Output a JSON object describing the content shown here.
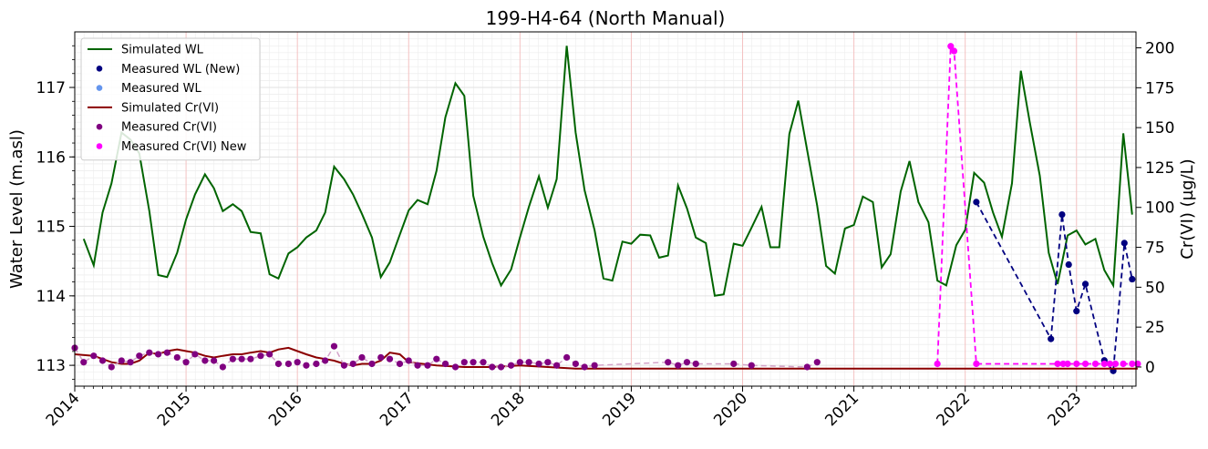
{
  "chart_data": {
    "type": "line",
    "title": "199-H4-64 (North Manual)",
    "ylabel_left": "Water Level (m.asl)",
    "ylabel_right": "Cr(VI) (µg/L)",
    "xlim": [
      "2014-01-01",
      "2023-07-15"
    ],
    "ylim_left": [
      112.7,
      117.8
    ],
    "ylim_right": [
      -12,
      210
    ],
    "x_ticks": [
      "2014",
      "2015",
      "2016",
      "2017",
      "2018",
      "2019",
      "2020",
      "2021",
      "2022",
      "2023"
    ],
    "y_ticks_left": [
      "113",
      "114",
      "115",
      "116",
      "117"
    ],
    "y_ticks_right": [
      "0",
      "25",
      "50",
      "75",
      "100",
      "125",
      "150",
      "175",
      "200"
    ],
    "grid": true,
    "legend_position": "top-left",
    "legend": [
      {
        "label": "Simulated WL",
        "kind": "line",
        "color": "#006400"
      },
      {
        "label": "Measured WL (New)",
        "kind": "dot",
        "color": "#000080"
      },
      {
        "label": "Measured WL",
        "kind": "dot",
        "color": "#6495ED"
      },
      {
        "label": "Simulated Cr(VI)",
        "kind": "line",
        "color": "#8B0000"
      },
      {
        "label": "Measured Cr(VI)",
        "kind": "dot",
        "color": "#800080"
      },
      {
        "label": "Measured Cr(VI) New",
        "kind": "dot",
        "color": "#FF00FF"
      }
    ],
    "series": [
      {
        "name": "Simulated WL",
        "axis": "left",
        "style": "line",
        "color": "#006400",
        "x": [
          2014.08,
          2014.17,
          2014.25,
          2014.33,
          2014.42,
          2014.5,
          2014.58,
          2014.67,
          2014.75,
          2014.83,
          2014.92,
          2015.0,
          2015.08,
          2015.17,
          2015.25,
          2015.33,
          2015.42,
          2015.5,
          2015.58,
          2015.67,
          2015.75,
          2015.83,
          2015.92,
          2016.0,
          2016.08,
          2016.17,
          2016.25,
          2016.33,
          2016.42,
          2016.5,
          2016.58,
          2016.67,
          2016.75,
          2016.83,
          2016.92,
          2017.0,
          2017.08,
          2017.17,
          2017.25,
          2017.33,
          2017.42,
          2017.5,
          2017.58,
          2017.67,
          2017.75,
          2017.83,
          2017.92,
          2018.0,
          2018.08,
          2018.17,
          2018.25,
          2018.33,
          2018.42,
          2018.5,
          2018.58,
          2018.67,
          2018.75,
          2018.83,
          2018.92,
          2019.0,
          2019.08,
          2019.17,
          2019.25,
          2019.33,
          2019.42,
          2019.5,
          2019.58,
          2019.67,
          2019.75,
          2019.83,
          2019.92,
          2020.0,
          2020.08,
          2020.17,
          2020.25,
          2020.33,
          2020.42,
          2020.5,
          2020.58,
          2020.67,
          2020.75,
          2020.83,
          2020.92,
          2021.0,
          2021.08,
          2021.17,
          2021.25,
          2021.33,
          2021.42,
          2021.5,
          2021.58,
          2021.67,
          2021.75,
          2021.83,
          2021.92,
          2022.0,
          2022.08,
          2022.17,
          2022.25,
          2022.33,
          2022.42,
          2022.5,
          2022.58,
          2022.67,
          2022.75,
          2022.83,
          2022.92,
          2023.0,
          2023.08,
          2023.17,
          2023.25,
          2023.33,
          2023.42,
          2023.5
        ],
        "y": [
          114.82,
          114.44,
          115.2,
          115.62,
          116.35,
          116.25,
          116.05,
          115.22,
          114.3,
          114.27,
          114.62,
          115.1,
          115.46,
          115.75,
          115.55,
          115.22,
          115.32,
          115.22,
          114.92,
          114.9,
          114.31,
          114.25,
          114.61,
          114.7,
          114.84,
          114.94,
          115.2,
          115.86,
          115.68,
          115.46,
          115.18,
          114.84,
          114.27,
          114.48,
          114.88,
          115.23,
          115.38,
          115.32,
          115.8,
          116.57,
          117.06,
          116.88,
          115.44,
          114.85,
          114.47,
          114.15,
          114.38,
          114.84,
          115.28,
          115.72,
          115.27,
          115.68,
          117.6,
          116.35,
          115.52,
          114.95,
          114.25,
          114.22,
          114.78,
          114.75,
          114.88,
          114.87,
          114.55,
          114.58,
          115.59,
          115.26,
          114.84,
          114.76,
          114.0,
          114.02,
          114.75,
          114.72,
          114.98,
          115.28,
          114.7,
          114.7,
          116.33,
          116.81,
          116.1,
          115.3,
          114.43,
          114.32,
          114.97,
          115.02,
          115.43,
          115.35,
          114.41,
          114.6,
          115.5,
          115.94,
          115.35,
          115.06,
          114.22,
          114.15,
          114.73,
          114.95,
          115.77,
          115.63,
          115.2,
          114.85,
          115.62,
          117.24,
          116.5,
          115.73,
          114.62,
          114.17,
          114.87,
          114.94,
          114.74,
          114.82,
          114.37,
          114.15,
          116.34,
          115.17
        ]
      },
      {
        "name": "Measured WL (New)",
        "axis": "left",
        "style": "dots-dashed",
        "color": "#000080",
        "x": [
          2022.1,
          2022.77,
          2022.87,
          2022.93,
          2023.0,
          2023.08,
          2023.25,
          2023.33,
          2023.43,
          2023.5
        ],
        "y": [
          115.35,
          113.38,
          115.17,
          114.45,
          113.78,
          114.17,
          113.07,
          112.92,
          114.76,
          114.24
        ]
      },
      {
        "name": "Measured WL",
        "axis": "left",
        "style": "dots-dashed",
        "color": "#6495ED",
        "x": [],
        "y": []
      },
      {
        "name": "Simulated Cr(VI)",
        "axis": "right",
        "style": "line",
        "color": "#8B0000",
        "x": [
          2014.0,
          2014.17,
          2014.33,
          2014.42,
          2014.5,
          2014.58,
          2014.67,
          2014.75,
          2014.83,
          2014.92,
          2015.0,
          2015.08,
          2015.17,
          2015.25,
          2015.33,
          2015.42,
          2015.5,
          2015.58,
          2015.67,
          2015.75,
          2015.83,
          2015.92,
          2016.0,
          2016.08,
          2016.17,
          2016.25,
          2016.33,
          2016.42,
          2016.5,
          2016.58,
          2016.67,
          2016.75,
          2016.83,
          2016.92,
          2017.0,
          2017.25,
          2017.5,
          2017.75,
          2018.0,
          2018.25,
          2018.5,
          2019.0,
          2020.0,
          2021.0,
          2022.0,
          2023.0,
          2023.55
        ],
        "y": [
          8,
          7,
          3,
          2,
          2,
          4,
          9,
          8,
          10,
          11,
          10,
          9,
          7,
          6,
          7,
          8,
          8,
          9,
          10,
          9,
          11,
          12,
          10,
          8,
          6,
          5,
          4,
          2,
          1,
          2,
          2,
          4,
          9,
          8,
          3,
          1,
          0,
          0,
          1,
          0,
          -1,
          -1,
          -1,
          -1,
          -1,
          -1,
          -1
        ]
      },
      {
        "name": "Measured Cr(VI)",
        "axis": "right",
        "style": "dots-dashed",
        "color": "#800080",
        "x": [
          2014.0,
          2014.08,
          2014.17,
          2014.25,
          2014.33,
          2014.42,
          2014.5,
          2014.58,
          2014.67,
          2014.75,
          2014.83,
          2014.92,
          2015.0,
          2015.08,
          2015.17,
          2015.25,
          2015.33,
          2015.42,
          2015.5,
          2015.58,
          2015.67,
          2015.75,
          2015.83,
          2015.92,
          2016.0,
          2016.08,
          2016.17,
          2016.25,
          2016.33,
          2016.42,
          2016.5,
          2016.58,
          2016.67,
          2016.75,
          2016.83,
          2016.92,
          2017.0,
          2017.08,
          2017.17,
          2017.25,
          2017.33,
          2017.42,
          2017.5,
          2017.58,
          2017.67,
          2017.75,
          2017.83,
          2017.92,
          2018.0,
          2018.08,
          2018.17,
          2018.25,
          2018.33,
          2018.42,
          2018.5,
          2018.58,
          2018.67,
          2019.33,
          2019.42,
          2019.5,
          2019.58,
          2019.92,
          2020.08,
          2020.58,
          2020.67
        ],
        "y": [
          12,
          3,
          7,
          4,
          0,
          4,
          3,
          7,
          9,
          8,
          9,
          6,
          3,
          8,
          4,
          4,
          0,
          5,
          5,
          5,
          7,
          8,
          2,
          2,
          3,
          1,
          2,
          4,
          13,
          1,
          2,
          6,
          2,
          6,
          5,
          2,
          4,
          1,
          1,
          5,
          2,
          0,
          3,
          3,
          3,
          0,
          0,
          1,
          3,
          3,
          2,
          3,
          1,
          6,
          2,
          0,
          1,
          3,
          1,
          3,
          2,
          2,
          1,
          0,
          3
        ]
      },
      {
        "name": "Measured Cr(VI) New",
        "axis": "right",
        "style": "dots-dashed",
        "color": "#FF00FF",
        "x": [
          2021.75,
          2021.87,
          2021.9,
          2022.1,
          2022.83,
          2022.88,
          2022.92,
          2023.0,
          2023.08,
          2023.17,
          2023.25,
          2023.3,
          2023.35,
          2023.42,
          2023.5,
          2023.55
        ],
        "y": [
          2,
          201,
          198,
          2,
          2,
          2,
          2,
          2,
          2,
          2,
          2,
          2,
          2,
          2,
          2,
          2
        ]
      }
    ]
  }
}
